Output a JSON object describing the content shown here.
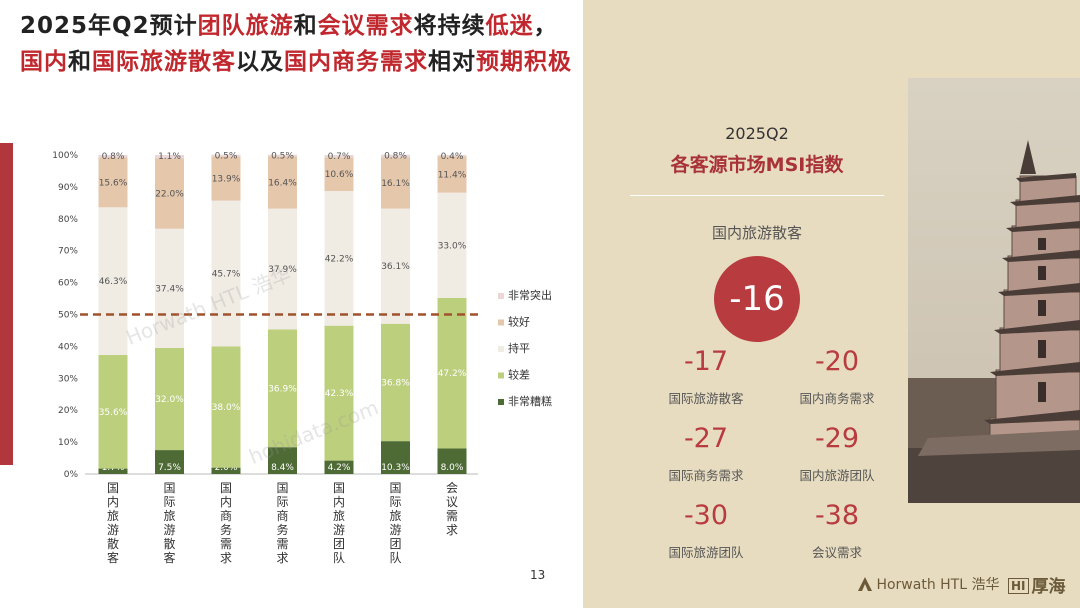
{
  "title": {
    "line1": [
      {
        "text": "2025年Q2预计",
        "hl": false
      },
      {
        "text": "团队旅游",
        "hl": true
      },
      {
        "text": "和",
        "hl": false
      },
      {
        "text": "会议需求",
        "hl": true
      },
      {
        "text": "将持续",
        "hl": false
      },
      {
        "text": "低迷",
        "hl": true
      },
      {
        "text": "，",
        "hl": false
      }
    ],
    "line2": [
      {
        "text": "国内",
        "hl": true
      },
      {
        "text": "和",
        "hl": false
      },
      {
        "text": "国际旅游散客",
        "hl": true
      },
      {
        "text": "以及",
        "hl": false
      },
      {
        "text": "国内商务需求",
        "hl": true
      },
      {
        "text": "相对",
        "hl": false
      },
      {
        "text": "预期积极",
        "hl": true
      }
    ]
  },
  "chart_data": {
    "type": "bar",
    "stacked": true,
    "percent": true,
    "categories": [
      "国内旅游散客",
      "国际旅游散客",
      "国内商务需求",
      "国际商务需求",
      "国内旅游团队",
      "国际旅游团队",
      "会议需求"
    ],
    "series": [
      {
        "name": "非常糟糕",
        "color": "#4e6b36",
        "values": [
          1.7,
          7.5,
          2.0,
          8.4,
          4.2,
          10.3,
          8.0
        ]
      },
      {
        "name": "较差",
        "color": "#bccf7d",
        "values": [
          35.6,
          32.0,
          38.0,
          36.9,
          42.3,
          36.8,
          47.2
        ]
      },
      {
        "name": "持平",
        "color": "#f0ece4",
        "values": [
          46.3,
          37.4,
          45.7,
          37.9,
          42.2,
          36.1,
          33.0
        ]
      },
      {
        "name": "较好",
        "color": "#e5c7ac",
        "values": [
          15.6,
          22.0,
          13.9,
          16.4,
          10.6,
          16.1,
          11.4
        ]
      },
      {
        "name": "非常突出",
        "color": "#ead7d7",
        "values": [
          0.8,
          1.1,
          0.5,
          0.5,
          0.7,
          0.8,
          0.4
        ]
      }
    ],
    "y_ticks": [
      "0%",
      "10%",
      "20%",
      "30%",
      "40%",
      "50%",
      "60%",
      "70%",
      "80%",
      "90%",
      "100%"
    ],
    "ylim": [
      0,
      100
    ],
    "reference_line": 50,
    "legend_position": "right",
    "grid": false
  },
  "watermarks": {
    "text1": "Horwath HTL 浩华",
    "text2": "hohidata.com"
  },
  "msi": {
    "subtitle": "2025Q2",
    "title": "各客源市场MSI指数",
    "main": {
      "label": "国内旅游散客",
      "value": "-16"
    },
    "items": [
      {
        "label": "国际旅游散客",
        "value": "-17"
      },
      {
        "label": "国内商务需求",
        "value": "-20"
      },
      {
        "label": "国际商务需求",
        "value": "-27"
      },
      {
        "label": "国内旅游团队",
        "value": "-29"
      },
      {
        "label": "国际旅游团队",
        "value": "-30"
      },
      {
        "label": "会议需求",
        "value": "-38"
      }
    ]
  },
  "page_number": "13",
  "logo": {
    "name": "Horwath HTL",
    "cn": "浩华",
    "brand": "厚海"
  },
  "colors": {
    "accent_red": "#b73b3f",
    "title_red": "#c0282e",
    "panel_bg": "#e7dcc0",
    "reference_line": "#a0522d",
    "left_accent": "#b2373c"
  }
}
